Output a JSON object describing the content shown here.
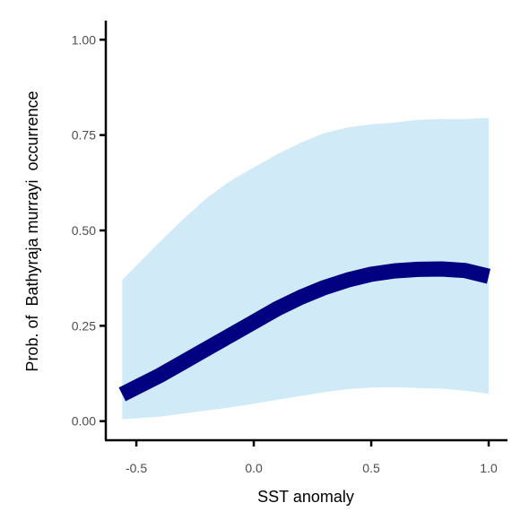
{
  "chart_data": {
    "type": "line",
    "title": "",
    "xlabel": "SST anomaly",
    "ylabel": "Prob. of  Bathyraja murrayi  occurrence",
    "xlim": [
      -0.63,
      1.08
    ],
    "ylim": [
      -0.05,
      1.05
    ],
    "x_ticks": [
      -0.5,
      0.0,
      0.5,
      1.0
    ],
    "x_tick_labels": [
      "-0.5",
      "0.0",
      "0.5",
      "1.0"
    ],
    "y_ticks": [
      0.0,
      0.25,
      0.5,
      0.75,
      1.0
    ],
    "y_tick_labels": [
      "0.00",
      "0.25",
      "0.50",
      "0.75",
      "1.00"
    ],
    "grid": false,
    "legend": "none",
    "series": [
      {
        "x": [
          -0.56,
          -0.4,
          -0.3,
          -0.2,
          -0.1,
          0.0,
          0.1,
          0.2,
          0.3,
          0.4,
          0.5,
          0.6,
          0.7,
          0.8,
          0.9,
          1.0
        ],
        "y": [
          0.07,
          0.12,
          0.155,
          0.19,
          0.225,
          0.26,
          0.295,
          0.325,
          0.35,
          0.37,
          0.385,
          0.394,
          0.398,
          0.399,
          0.395,
          0.38
        ],
        "lower": [
          0.005,
          0.012,
          0.02,
          0.028,
          0.036,
          0.046,
          0.056,
          0.066,
          0.076,
          0.084,
          0.088,
          0.089,
          0.087,
          0.085,
          0.08,
          0.072
        ],
        "upper": [
          0.37,
          0.47,
          0.53,
          0.585,
          0.63,
          0.665,
          0.7,
          0.73,
          0.755,
          0.77,
          0.778,
          0.783,
          0.79,
          0.792,
          0.792,
          0.795
        ]
      }
    ],
    "colors": {
      "line": "#000080",
      "ribbon": "#d0eaf7",
      "axis": "#000000",
      "tick_text": "#4d4d4d"
    }
  }
}
